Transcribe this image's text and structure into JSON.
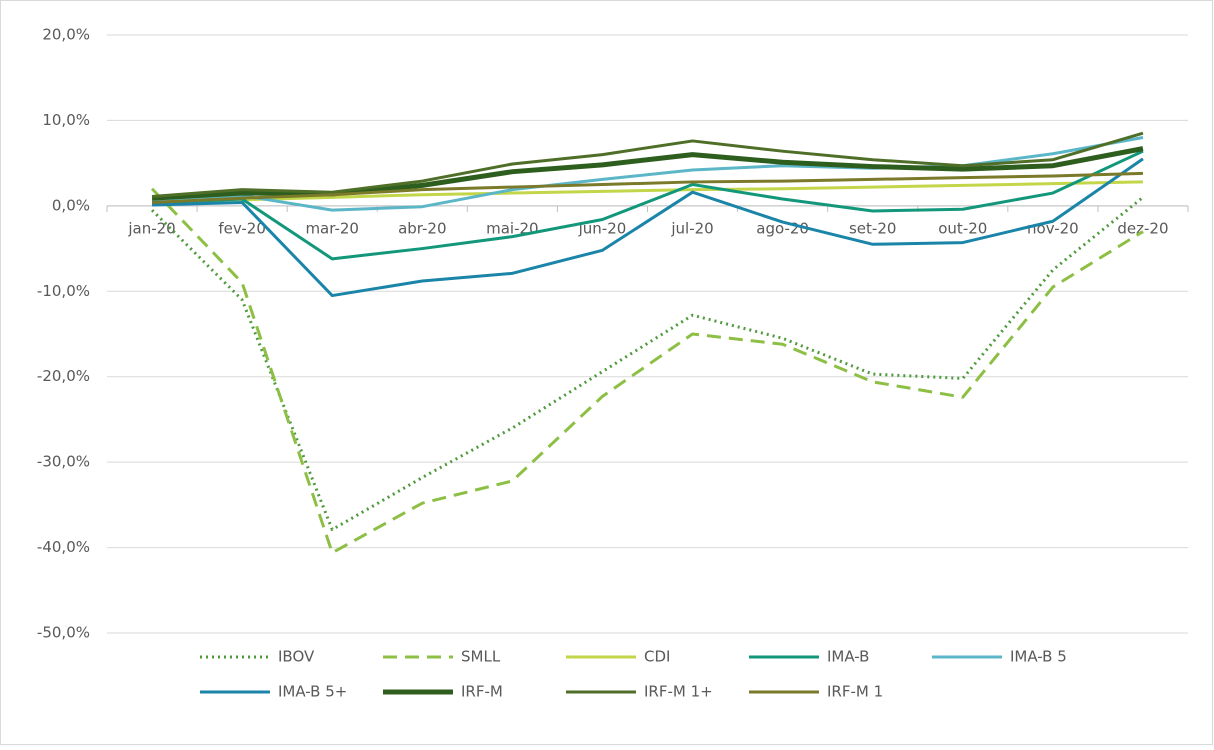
{
  "chart_data": {
    "type": "line",
    "categories": [
      "jan-20",
      "fev-20",
      "mar-20",
      "abr-20",
      "mai-20",
      "jun-20",
      "jul-20",
      "ago-20",
      "set-20",
      "out-20",
      "nov-20",
      "dez-20"
    ],
    "series": [
      {
        "name": "IBOV",
        "color": "#4e9a3c",
        "line_style": "dot",
        "values": [
          -0.5,
          -11,
          -37.9,
          -31.8,
          -26,
          -19.4,
          -12.8,
          -15.5,
          -19.7,
          -20.2,
          -7.5,
          1.0
        ]
      },
      {
        "name": "SMLL",
        "color": "#8dbf44",
        "line_style": "dash",
        "values": [
          2.0,
          -9,
          -40.6,
          -34.8,
          -32.2,
          -22.3,
          -15,
          -16.2,
          -20.6,
          -22.4,
          -9.5,
          -3
        ]
      },
      {
        "name": "CDI",
        "color": "#c3d64a",
        "line_style": "solid",
        "values": [
          0.4,
          0.7,
          1.0,
          1.3,
          1.5,
          1.7,
          1.9,
          2.0,
          2.2,
          2.4,
          2.6,
          2.8
        ]
      },
      {
        "name": "IMA-B",
        "color": "#12977b",
        "line_style": "solid",
        "values": [
          0.3,
          0.8,
          -6.2,
          -5.0,
          -3.6,
          -1.6,
          2.5,
          0.8,
          -0.6,
          -0.4,
          1.5,
          6.4
        ]
      },
      {
        "name": "IMA-B 5",
        "color": "#5bb6c8",
        "line_style": "solid",
        "values": [
          0.5,
          1.2,
          -0.5,
          -0.1,
          1.9,
          3.1,
          4.2,
          4.7,
          4.4,
          4.7,
          6.1,
          8.0
        ]
      },
      {
        "name": "IMA-B 5+",
        "color": "#1a85a8",
        "line_style": "solid",
        "values": [
          0.1,
          0.4,
          -10.5,
          -8.8,
          -7.9,
          -5.2,
          1.6,
          -1.9,
          -4.5,
          -4.3,
          -1.8,
          5.5
        ]
      },
      {
        "name": "IRF-M",
        "color": "#2e5e1e",
        "line_style": "thick",
        "values": [
          0.9,
          1.5,
          1.4,
          2.4,
          4.0,
          4.8,
          6.0,
          5.1,
          4.6,
          4.3,
          4.7,
          6.7
        ]
      },
      {
        "name": "IRF-M 1+",
        "color": "#4f6e28",
        "line_style": "solid",
        "values": [
          1.1,
          1.9,
          1.6,
          2.9,
          4.9,
          6.0,
          7.6,
          6.4,
          5.4,
          4.7,
          5.4,
          8.5
        ]
      },
      {
        "name": "IRF-M 1",
        "color": "#7a7a2a",
        "line_style": "solid",
        "values": [
          0.4,
          0.9,
          1.3,
          1.9,
          2.2,
          2.5,
          2.8,
          2.9,
          3.1,
          3.3,
          3.5,
          3.8
        ]
      }
    ],
    "ylim": [
      -50,
      20
    ],
    "yticks": [
      {
        "value": -50,
        "label": "-50,0%"
      },
      {
        "value": -40,
        "label": "-40,0%"
      },
      {
        "value": -30,
        "label": "-30,0%"
      },
      {
        "value": -20,
        "label": "-20,0%"
      },
      {
        "value": -10,
        "label": "-10,0%"
      },
      {
        "value": 0,
        "label": "0,0%"
      },
      {
        "value": 10,
        "label": "10,0%"
      },
      {
        "value": 20,
        "label": "20,0%"
      }
    ],
    "grid": true,
    "legend": "bottom"
  }
}
